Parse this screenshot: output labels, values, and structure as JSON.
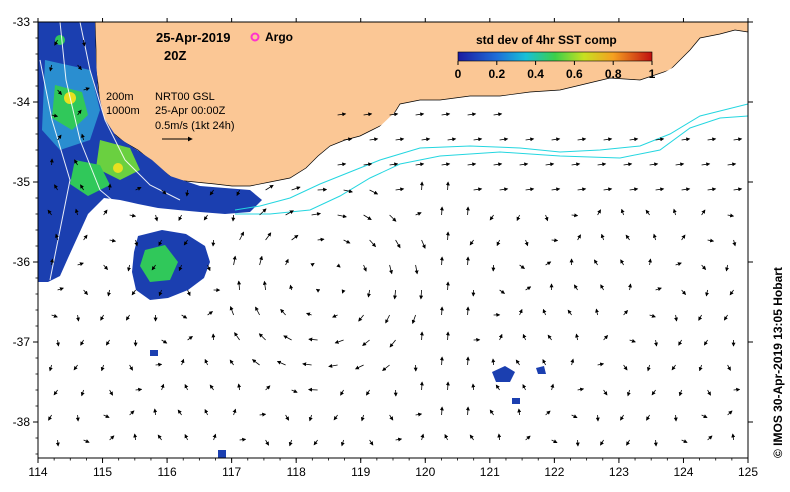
{
  "map": {
    "date_label": "25-Apr-2019",
    "time_label": "20Z",
    "argo_label": "Argo",
    "colorbar_title": "std dev of 4hr SST comp",
    "colorbar_ticks": [
      "0",
      "0.2",
      "0.4",
      "0.6",
      "0.8",
      "1"
    ],
    "contour_200": "200m",
    "contour_1000": "1000m",
    "source_line": "NRT00 GSL",
    "source_time": "25-Apr 00:00Z",
    "scale_label": "0.5m/s (1kt 24h)",
    "credit": "© IMOS 30-Apr-2019 13:05 Hobart",
    "x_ticks": [
      "114",
      "115",
      "116",
      "117",
      "118",
      "119",
      "120",
      "121",
      "122",
      "123",
      "124",
      "125"
    ],
    "y_ticks": [
      "-33",
      "-34",
      "-35",
      "-36",
      "-37",
      "-38"
    ],
    "colors": {
      "land": "#fbc795",
      "coast_band": "#ffffff",
      "sst_low": "#1b3fb0",
      "sst_mid": "#30c85a",
      "sst_high": "#f5d020",
      "isobath": "#24d6e0",
      "argo": "#ff33cc"
    }
  }
}
